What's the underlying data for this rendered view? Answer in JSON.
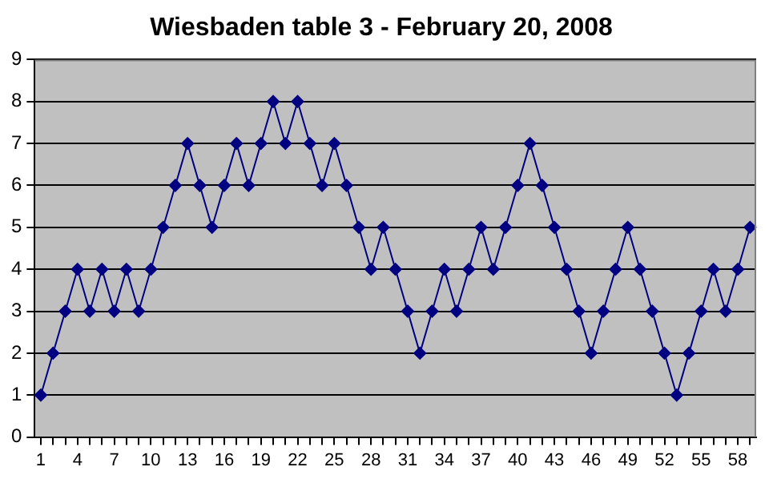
{
  "chart_data": {
    "type": "line",
    "title": "Wiesbaden table 3 - February 20, 2008",
    "categories": [
      "1",
      null,
      null,
      "4",
      null,
      null,
      "7",
      null,
      null,
      "10",
      null,
      null,
      "13",
      null,
      null,
      "16",
      null,
      null,
      "19",
      null,
      null,
      "22",
      null,
      null,
      "25",
      null,
      null,
      "28",
      null,
      null,
      "31",
      null,
      null,
      "34",
      null,
      null,
      "37",
      null,
      null,
      "40",
      null,
      null,
      "43",
      null,
      null,
      "46",
      null,
      null,
      "49",
      null,
      null,
      "52",
      null,
      null,
      "55",
      null,
      null,
      "58",
      null
    ],
    "series": [
      {
        "color": "#000080",
        "values": [
          1,
          2,
          3,
          4,
          3,
          4,
          3,
          4,
          3,
          4,
          5,
          6,
          7,
          6,
          5,
          6,
          7,
          6,
          7,
          8,
          7,
          8,
          7,
          6,
          7,
          6,
          5,
          4,
          5,
          4,
          3,
          2,
          3,
          4,
          3,
          4,
          5,
          4,
          5,
          6,
          7,
          6,
          5,
          4,
          3,
          2,
          3,
          4,
          5,
          4,
          3,
          2,
          1,
          2,
          3,
          4,
          3,
          4,
          5
        ]
      }
    ],
    "ylim": [
      0,
      9
    ],
    "yticks": [
      0,
      1,
      2,
      3,
      4,
      5,
      6,
      7,
      8,
      9
    ],
    "grid": "y",
    "legend": false,
    "marker": "diamond",
    "line_style": "solid"
  }
}
